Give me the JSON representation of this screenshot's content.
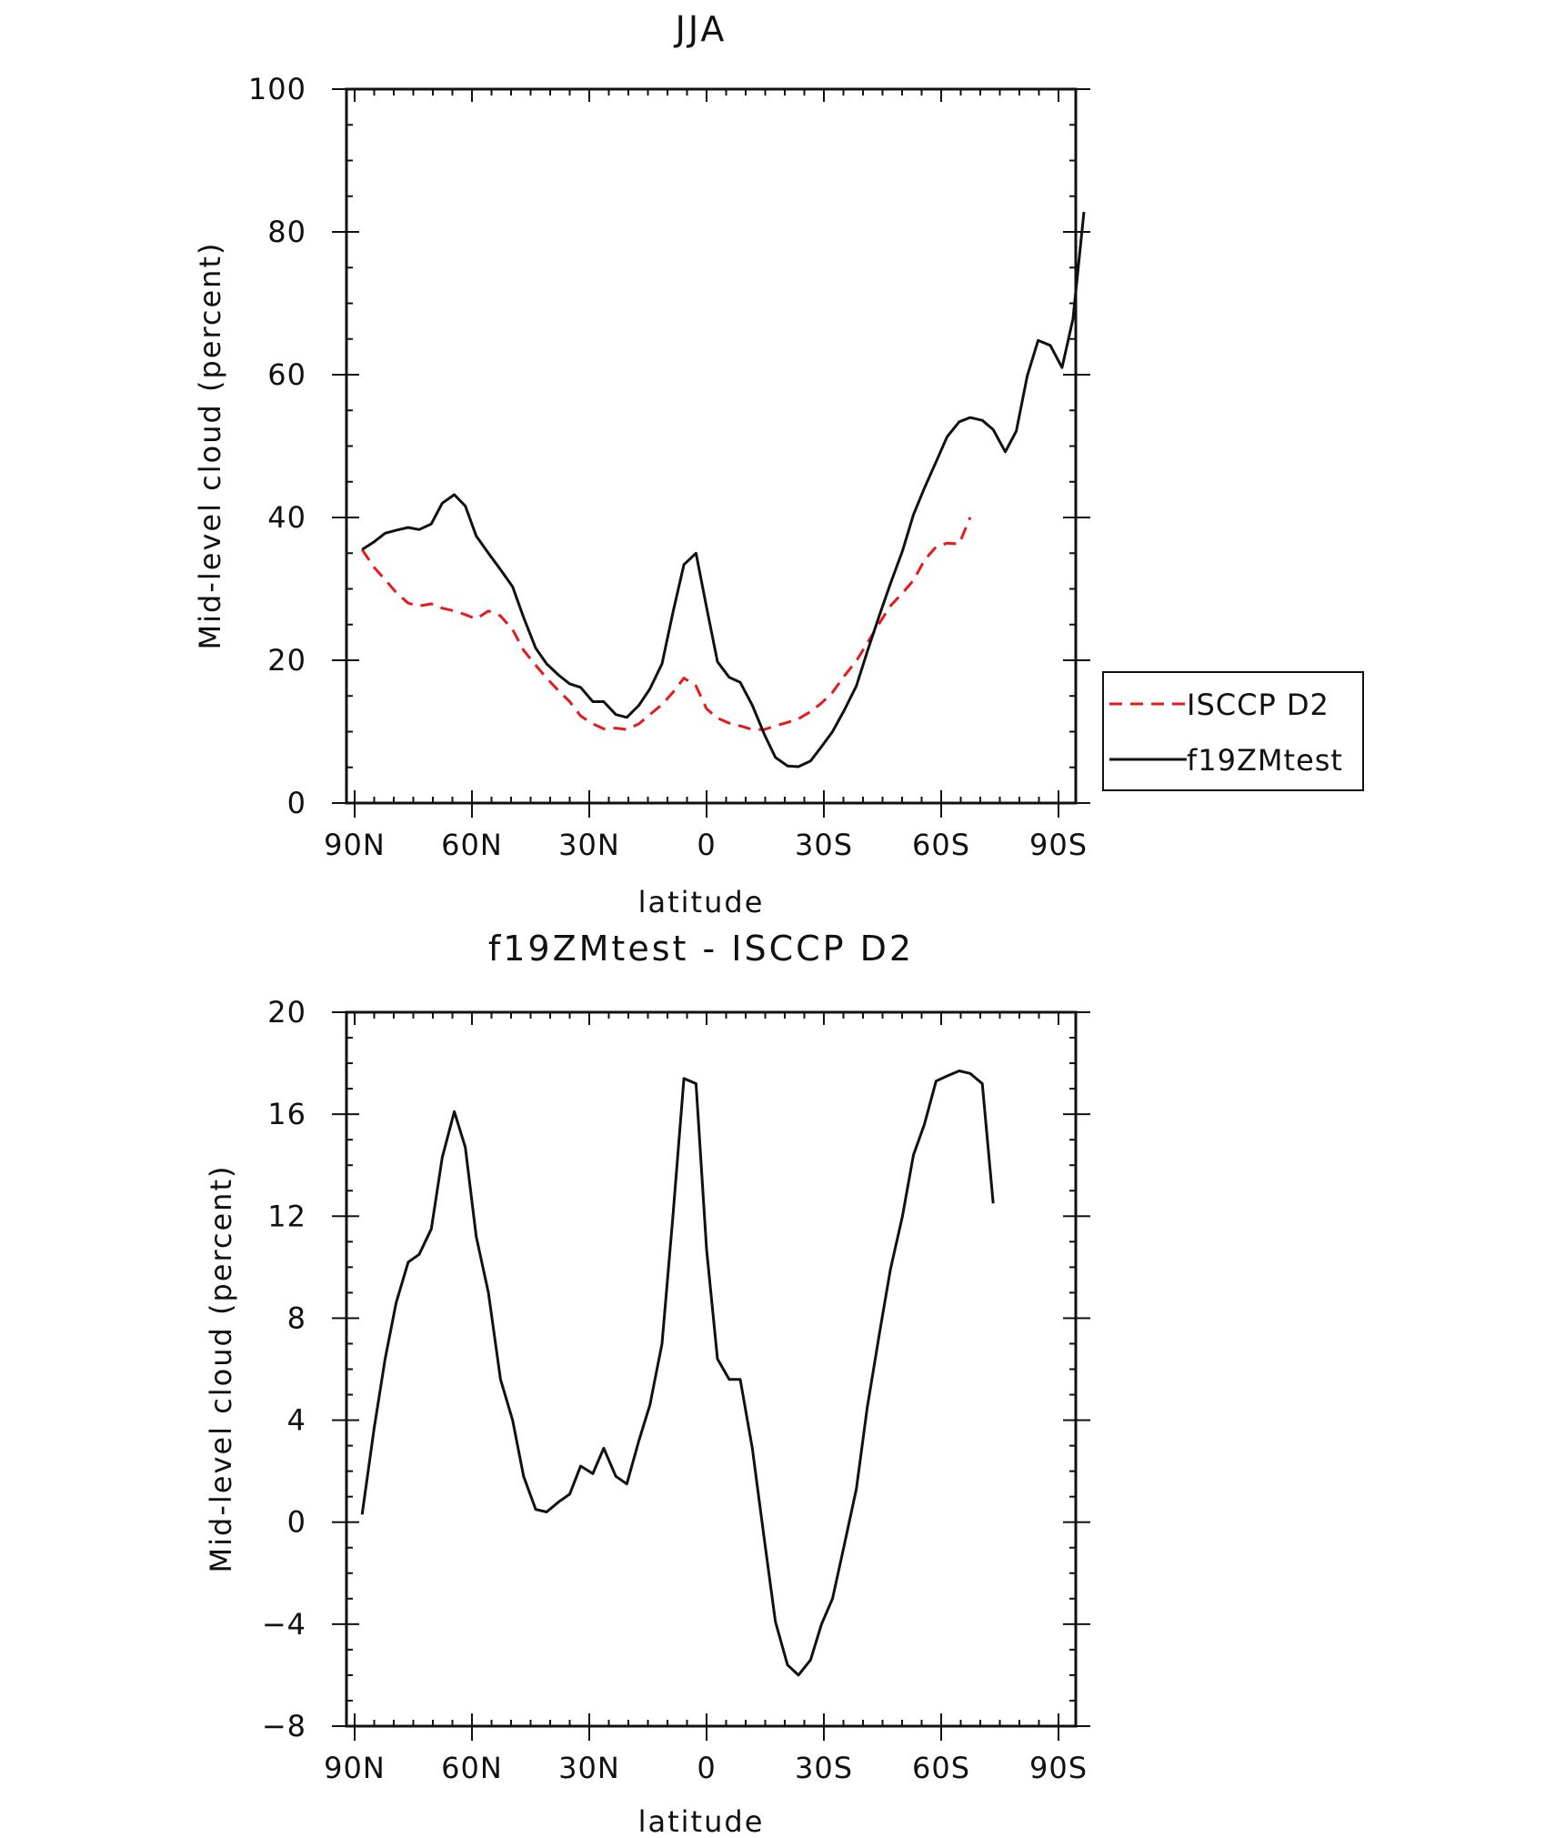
{
  "chart_data": [
    {
      "type": "line",
      "title": "JJA",
      "xlabel": "latitude",
      "ylabel": "Mid-level cloud (percent)",
      "xlim": [
        90,
        -90
      ],
      "ylim": [
        0,
        100
      ],
      "x_ticks": [
        90,
        60,
        30,
        0,
        -30,
        -60,
        -90
      ],
      "x_tick_labels": [
        "90N",
        "60N",
        "30N",
        "0",
        "30S",
        "60S",
        "90S"
      ],
      "y_ticks": [
        0,
        20,
        40,
        60,
        80,
        100
      ],
      "y_tick_labels": [
        "0",
        "20",
        "40",
        "60",
        "80",
        "100"
      ],
      "legend_position": "right",
      "series": [
        {
          "name": "ISCCP D2",
          "color": "#e8191d",
          "dash": true,
          "points": [
            [
              88.1,
              35.5
            ],
            [
              85.0,
              33.0
            ],
            [
              82.2,
              31.3
            ],
            [
              79.4,
              29.5
            ],
            [
              76.3,
              28.0
            ],
            [
              73.5,
              27.6
            ],
            [
              70.4,
              27.9
            ],
            [
              67.6,
              27.3
            ],
            [
              64.5,
              26.9
            ],
            [
              61.7,
              26.4
            ],
            [
              58.9,
              25.8
            ],
            [
              55.8,
              26.9
            ],
            [
              52.7,
              26.2
            ],
            [
              49.6,
              24.3
            ],
            [
              46.8,
              21.4
            ],
            [
              43.7,
              19.3
            ],
            [
              40.9,
              17.5
            ],
            [
              37.8,
              15.7
            ],
            [
              35.0,
              14.2
            ],
            [
              32.2,
              12.2
            ],
            [
              29.1,
              11.1
            ],
            [
              26.3,
              10.4
            ],
            [
              23.2,
              10.5
            ],
            [
              20.4,
              10.3
            ],
            [
              17.3,
              11.1
            ],
            [
              14.5,
              12.4
            ],
            [
              11.4,
              13.8
            ],
            [
              8.6,
              15.5
            ],
            [
              5.8,
              17.5
            ],
            [
              2.7,
              16.4
            ],
            [
              0.0,
              13.2
            ],
            [
              -2.8,
              11.9
            ],
            [
              -5.8,
              11.2
            ],
            [
              -8.6,
              10.8
            ],
            [
              -11.7,
              10.3
            ],
            [
              -14.8,
              10.3
            ],
            [
              -17.6,
              10.8
            ],
            [
              -20.7,
              11.3
            ],
            [
              -23.5,
              11.8
            ],
            [
              -26.6,
              12.8
            ],
            [
              -29.4,
              14.0
            ],
            [
              -32.2,
              15.5
            ],
            [
              -35.2,
              17.8
            ],
            [
              -38.3,
              19.9
            ],
            [
              -41.1,
              22.4
            ],
            [
              -44.2,
              25.2
            ],
            [
              -47.0,
              27.6
            ],
            [
              -50.1,
              29.4
            ],
            [
              -52.9,
              31.2
            ],
            [
              -55.7,
              34.0
            ],
            [
              -58.7,
              35.9
            ],
            [
              -61.5,
              36.4
            ],
            [
              -64.6,
              36.3
            ],
            [
              -67.4,
              40.0
            ]
          ]
        },
        {
          "name": "f19ZMtest",
          "color": "#111111",
          "dash": false,
          "points": [
            [
              88.1,
              35.5
            ],
            [
              85.0,
              36.6
            ],
            [
              82.2,
              37.8
            ],
            [
              79.4,
              38.2
            ],
            [
              76.3,
              38.6
            ],
            [
              73.5,
              38.3
            ],
            [
              70.4,
              39.1
            ],
            [
              67.6,
              42.0
            ],
            [
              64.5,
              43.2
            ],
            [
              61.7,
              41.6
            ],
            [
              58.9,
              37.4
            ],
            [
              55.8,
              35.0
            ],
            [
              52.7,
              32.7
            ],
            [
              49.6,
              30.3
            ],
            [
              46.8,
              26.0
            ],
            [
              43.7,
              21.7
            ],
            [
              40.9,
              19.5
            ],
            [
              37.8,
              17.9
            ],
            [
              35.0,
              16.7
            ],
            [
              32.2,
              16.2
            ],
            [
              29.1,
              14.2
            ],
            [
              26.3,
              14.2
            ],
            [
              23.2,
              12.4
            ],
            [
              20.4,
              12.0
            ],
            [
              17.3,
              13.7
            ],
            [
              14.5,
              16.0
            ],
            [
              11.4,
              19.5
            ],
            [
              8.6,
              26.7
            ],
            [
              5.8,
              33.4
            ],
            [
              2.7,
              35.0
            ],
            [
              0.0,
              27.4
            ],
            [
              -2.8,
              19.8
            ],
            [
              -5.8,
              17.6
            ],
            [
              -8.6,
              16.9
            ],
            [
              -11.7,
              13.7
            ],
            [
              -14.8,
              9.6
            ],
            [
              -17.6,
              6.4
            ],
            [
              -20.7,
              5.2
            ],
            [
              -23.5,
              5.1
            ],
            [
              -26.6,
              5.9
            ],
            [
              -29.4,
              7.9
            ],
            [
              -32.2,
              10.0
            ],
            [
              -35.2,
              13.0
            ],
            [
              -38.3,
              16.4
            ],
            [
              -41.1,
              21.2
            ],
            [
              -44.2,
              26.3
            ],
            [
              -47.0,
              30.7
            ],
            [
              -50.1,
              35.3
            ],
            [
              -52.9,
              40.4
            ],
            [
              -55.7,
              44.1
            ],
            [
              -58.7,
              47.8
            ],
            [
              -61.5,
              51.3
            ],
            [
              -64.6,
              53.4
            ],
            [
              -67.4,
              54.0
            ],
            [
              -70.5,
              53.6
            ],
            [
              -73.3,
              52.3
            ],
            [
              -76.4,
              49.2
            ],
            [
              -79.2,
              52.1
            ],
            [
              -82.0,
              59.8
            ],
            [
              -84.8,
              64.8
            ],
            [
              -87.9,
              64.1
            ],
            [
              -90.9,
              61.0
            ],
            [
              -93.7,
              67.8
            ],
            [
              -96.5,
              82.8
            ]
          ]
        }
      ]
    },
    {
      "type": "line",
      "title": "f19ZMtest - ISCCP D2",
      "xlabel": "latitude",
      "ylabel": "Mid-level cloud (percent)",
      "xlim": [
        90,
        -90
      ],
      "ylim": [
        -8,
        20
      ],
      "x_ticks": [
        90,
        60,
        30,
        0,
        -30,
        -60,
        -90
      ],
      "x_tick_labels": [
        "90N",
        "60N",
        "30N",
        "0",
        "30S",
        "60S",
        "90S"
      ],
      "y_ticks": [
        -8,
        -4,
        0,
        4,
        8,
        12,
        16,
        20
      ],
      "y_tick_labels": [
        "−8",
        "−4",
        "0",
        "4",
        "8",
        "12",
        "16",
        "20"
      ],
      "series": [
        {
          "color": "#111111",
          "dash": false,
          "points": [
            [
              88.1,
              0.3
            ],
            [
              85.0,
              3.7
            ],
            [
              82.2,
              6.4
            ],
            [
              79.4,
              8.6
            ],
            [
              76.3,
              10.2
            ],
            [
              73.5,
              10.5
            ],
            [
              70.4,
              11.5
            ],
            [
              67.6,
              14.3
            ],
            [
              64.5,
              16.1
            ],
            [
              61.7,
              14.7
            ],
            [
              58.9,
              11.2
            ],
            [
              55.8,
              9.0
            ],
            [
              52.7,
              5.6
            ],
            [
              49.6,
              4.0
            ],
            [
              46.8,
              1.8
            ],
            [
              43.7,
              0.5
            ],
            [
              40.9,
              0.4
            ],
            [
              37.8,
              0.8
            ],
            [
              35.0,
              1.1
            ],
            [
              32.2,
              2.2
            ],
            [
              29.1,
              1.9
            ],
            [
              26.3,
              2.9
            ],
            [
              23.2,
              1.8
            ],
            [
              20.4,
              1.5
            ],
            [
              17.3,
              3.2
            ],
            [
              14.5,
              4.6
            ],
            [
              11.4,
              7.0
            ],
            [
              8.6,
              12.0
            ],
            [
              5.8,
              17.4
            ],
            [
              2.7,
              17.2
            ],
            [
              0.0,
              10.7
            ],
            [
              -2.8,
              6.4
            ],
            [
              -5.8,
              5.6
            ],
            [
              -8.6,
              5.6
            ],
            [
              -11.7,
              2.9
            ],
            [
              -14.8,
              -0.7
            ],
            [
              -17.6,
              -3.9
            ],
            [
              -20.7,
              -5.6
            ],
            [
              -23.5,
              -6.0
            ],
            [
              -26.6,
              -5.4
            ],
            [
              -29.4,
              -4.0
            ],
            [
              -32.2,
              -3.0
            ],
            [
              -35.2,
              -0.9
            ],
            [
              -38.3,
              1.3
            ],
            [
              -41.1,
              4.5
            ],
            [
              -44.2,
              7.4
            ],
            [
              -47.0,
              9.9
            ],
            [
              -50.1,
              12.0
            ],
            [
              -52.9,
              14.4
            ],
            [
              -55.7,
              15.6
            ],
            [
              -58.7,
              17.3
            ],
            [
              -61.5,
              17.5
            ],
            [
              -64.6,
              17.7
            ],
            [
              -67.4,
              17.6
            ],
            [
              -70.5,
              17.2
            ],
            [
              -73.3,
              12.5
            ]
          ]
        }
      ]
    }
  ]
}
